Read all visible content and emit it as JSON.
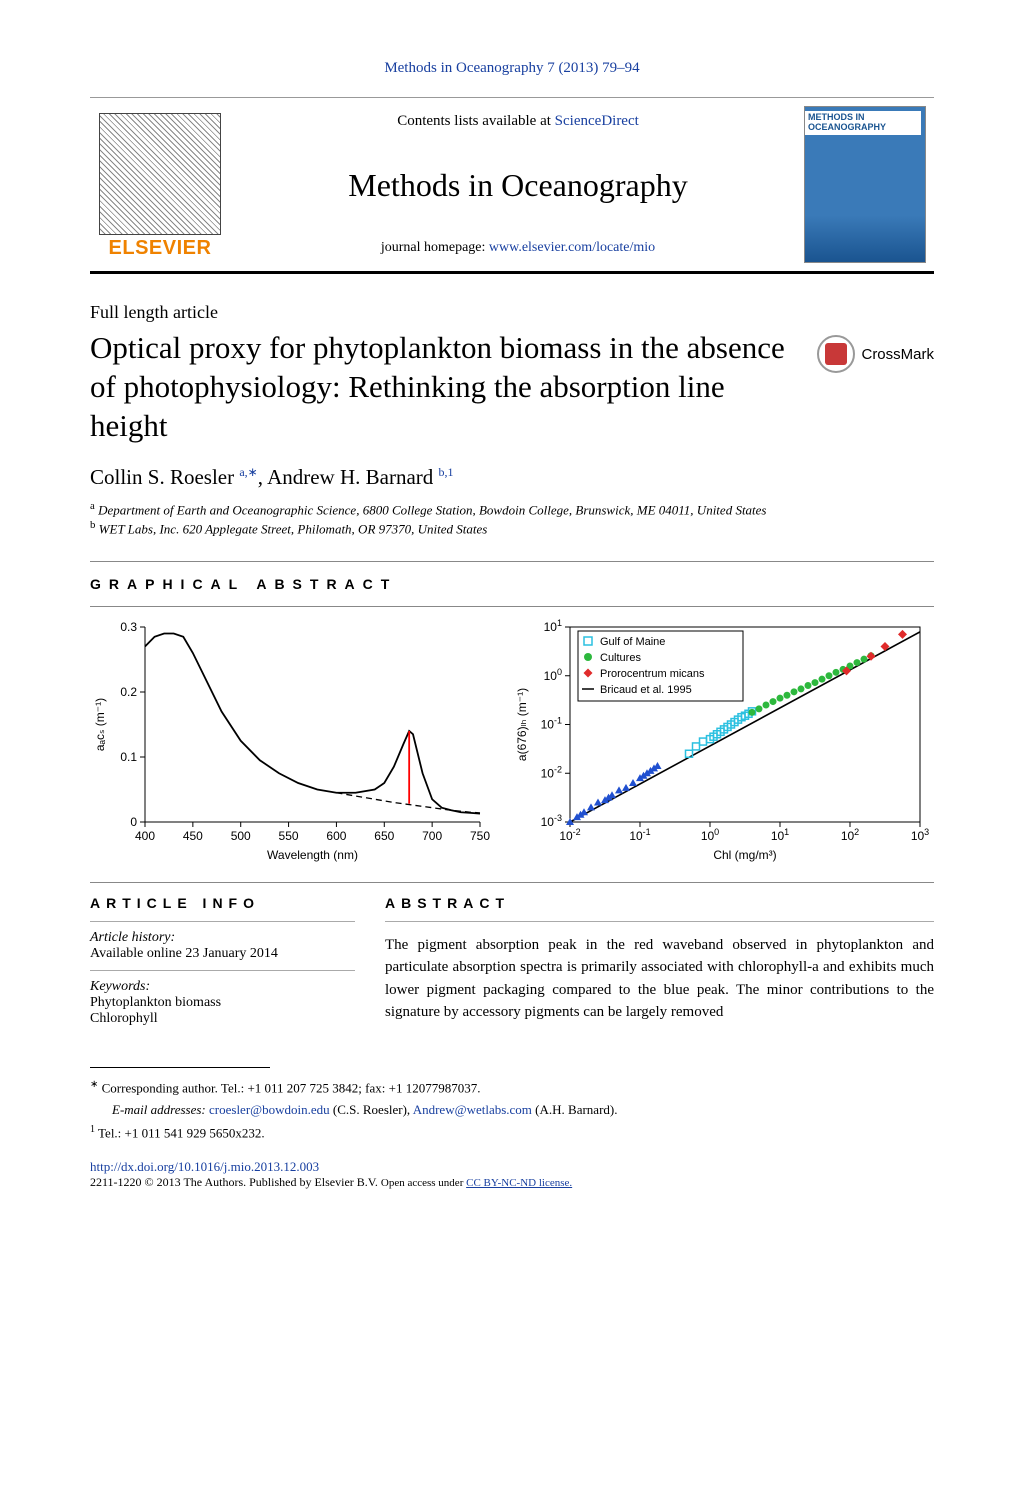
{
  "citation": "Methods in Oceanography 7 (2013) 79–94",
  "header": {
    "contents_prefix": "Contents lists available at ",
    "contents_link": "ScienceDirect",
    "journal_name": "Methods in Oceanography",
    "homepage_prefix": "journal homepage: ",
    "homepage_link": "www.elsevier.com/locate/mio",
    "elsevier_label": "ELSEVIER",
    "cover_label": "METHODS IN OCEANOGRAPHY"
  },
  "article_type": "Full length article",
  "title": "Optical proxy for phytoplankton biomass in the absence of photophysiology: Rethinking the absorption line height",
  "crossmark_label": "CrossMark",
  "authors_html": {
    "a1_name": "Collin S. Roesler",
    "a1_sup": "a,∗",
    "a2_name": "Andrew H. Barnard",
    "a2_sup": "b,1"
  },
  "affiliations": {
    "a": "Department of Earth and Oceanographic Science, 6800 College Station, Bowdoin College, Brunswick, ME 04011, United States",
    "b": "WET Labs, Inc. 620 Applegate Street, Philomath, OR 97370, United States"
  },
  "graphical_abstract_label": "graphical abstract",
  "chart_left": {
    "type": "line",
    "xlabel": "Wavelength (nm)",
    "ylabel": "aₐcₛ (m⁻¹)",
    "xlim": [
      400,
      750
    ],
    "ylim": [
      0,
      0.3
    ],
    "xticks": [
      400,
      450,
      500,
      550,
      600,
      650,
      700,
      750
    ],
    "yticks": [
      0,
      0.1,
      0.2,
      0.3
    ],
    "curve_x": [
      400,
      410,
      420,
      430,
      440,
      450,
      460,
      480,
      500,
      520,
      540,
      560,
      580,
      600,
      620,
      640,
      650,
      660,
      670,
      676,
      680,
      690,
      700,
      710,
      720,
      730,
      740,
      750
    ],
    "curve_y": [
      0.27,
      0.285,
      0.29,
      0.29,
      0.285,
      0.26,
      0.23,
      0.17,
      0.125,
      0.095,
      0.075,
      0.06,
      0.05,
      0.045,
      0.045,
      0.05,
      0.06,
      0.085,
      0.12,
      0.14,
      0.135,
      0.075,
      0.035,
      0.022,
      0.018,
      0.015,
      0.014,
      0.013
    ],
    "baseline_dash_x": [
      600,
      620,
      640,
      660,
      680,
      700,
      720,
      740,
      750
    ],
    "baseline_dash_y": [
      0.045,
      0.04,
      0.035,
      0.03,
      0.026,
      0.022,
      0.018,
      0.015,
      0.014
    ],
    "lh_line": {
      "x": 676,
      "y0": 0.028,
      "y1": 0.14
    },
    "line_color": "#000000",
    "lh_color": "#ff0000",
    "label_fontsize": 12
  },
  "chart_right": {
    "type": "scatter-log",
    "xlabel": "Chl (mg/m³)",
    "ylabel": "a(676)ₗₕ (m⁻¹)",
    "xlim_exp": [
      -2,
      3
    ],
    "ylim_exp": [
      -3,
      1
    ],
    "xticks_exp": [
      -2,
      -1,
      0,
      1,
      2,
      3
    ],
    "yticks_exp": [
      -3,
      -2,
      -1,
      0,
      1
    ],
    "legend": {
      "items": [
        {
          "label": "Gulf of Maine",
          "marker": "square-open",
          "color": "#2bc0e0"
        },
        {
          "label": "Cultures",
          "marker": "circle",
          "color": "#2db83d"
        },
        {
          "label": "Prorocentrum micans",
          "marker": "diamond",
          "color": "#e02b2b"
        },
        {
          "label": "Bricaud et al. 1995",
          "marker": "line",
          "color": "#000000"
        }
      ],
      "position": "upper-left-inset"
    },
    "reg_line": {
      "x_exp": [
        -2,
        3
      ],
      "y_exp": [
        -3,
        0.9
      ],
      "color": "#000000"
    },
    "points": {
      "triangles_blue": {
        "color": "#2050d0",
        "x_exp": [
          -2,
          -1.9,
          -1.85,
          -1.8,
          -1.7,
          -1.6,
          -1.5,
          -1.45,
          -1.4,
          -1.3,
          -1.2,
          -1.1,
          -1,
          -0.95,
          -0.9,
          -0.85,
          -0.8,
          -0.75
        ],
        "y_exp": [
          -3,
          -2.9,
          -2.85,
          -2.8,
          -2.7,
          -2.6,
          -2.55,
          -2.5,
          -2.45,
          -2.35,
          -2.3,
          -2.2,
          -2.1,
          -2.05,
          -2,
          -1.95,
          -1.9,
          -1.85
        ]
      },
      "squares": {
        "color": "#2bc0e0",
        "x_exp": [
          -0.3,
          -0.2,
          -0.1,
          0,
          0.05,
          0.1,
          0.15,
          0.2,
          0.25,
          0.3,
          0.35,
          0.4,
          0.45,
          0.5,
          0.55,
          0.6
        ],
        "y_exp": [
          -1.6,
          -1.45,
          -1.35,
          -1.3,
          -1.25,
          -1.2,
          -1.15,
          -1.1,
          -1.05,
          -1,
          -0.95,
          -0.9,
          -0.85,
          -0.82,
          -0.78,
          -0.73
        ]
      },
      "circles": {
        "color": "#2db83d",
        "x_exp": [
          0.6,
          0.7,
          0.8,
          0.9,
          1,
          1.1,
          1.2,
          1.3,
          1.4,
          1.5,
          1.6,
          1.7,
          1.8,
          1.9,
          2,
          2.1,
          2.2,
          2.3
        ],
        "y_exp": [
          -0.75,
          -0.68,
          -0.6,
          -0.53,
          -0.46,
          -0.4,
          -0.33,
          -0.27,
          -0.2,
          -0.14,
          -0.07,
          0,
          0.07,
          0.13,
          0.2,
          0.27,
          0.34,
          0.41
        ]
      },
      "diamonds": {
        "color": "#e02b2b",
        "x_exp": [
          1.95,
          2.3,
          2.5,
          2.75
        ],
        "y_exp": [
          0.1,
          0.4,
          0.6,
          0.85
        ]
      }
    },
    "label_fontsize": 12
  },
  "article_info": {
    "label": "article info",
    "history_head": "Article history:",
    "history_text": "Available online 23 January 2014",
    "keywords_head": "Keywords:",
    "keywords": [
      "Phytoplankton biomass",
      "Chlorophyll"
    ]
  },
  "abstract": {
    "label": "abstract",
    "text": "The pigment absorption peak in the red waveband observed in phytoplankton and particulate absorption spectra is primarily associated with chlorophyll-a and exhibits much lower pigment packaging compared to the blue peak. The minor contributions to the signature by accessory pigments can be largely removed"
  },
  "footnotes": {
    "corr": "Corresponding author. Tel.: +1 011 207 725 3842; fax: +1 12077987037.",
    "email_pre": "E-mail addresses: ",
    "email1": "croesler@bowdoin.edu",
    "email1_who": " (C.S. Roesler), ",
    "email2": "Andrew@wetlabs.com",
    "email2_who": " (A.H. Barnard).",
    "tel1": "Tel.: +1 011 541 929 5650x232."
  },
  "doi": "http://dx.doi.org/10.1016/j.mio.2013.12.003",
  "copyright_pre": "2211-1220 © 2013 The Authors. Published by Elsevier B.V. ",
  "copyright_mid": "Open access under ",
  "copyright_link": "CC BY-NC-ND license."
}
